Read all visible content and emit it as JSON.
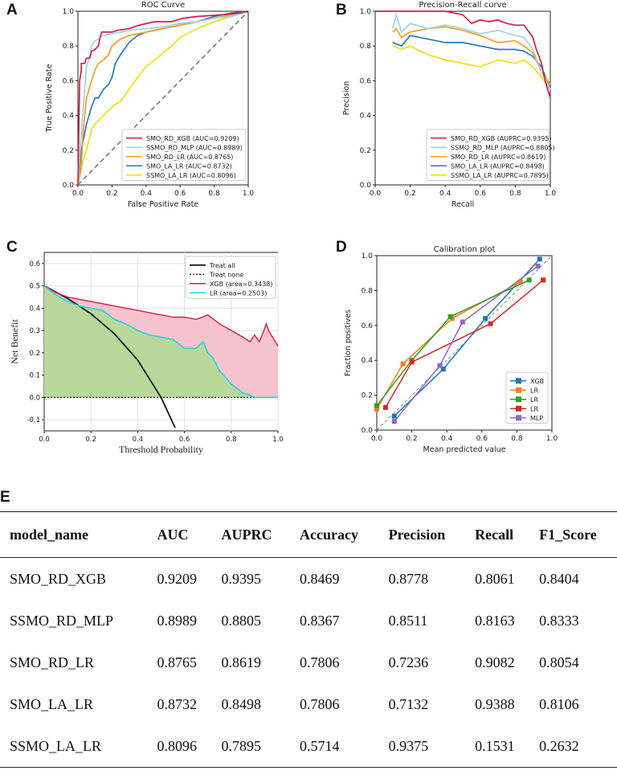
{
  "panels": {
    "a": "A",
    "b": "B",
    "c": "C",
    "d": "D",
    "e": "E"
  },
  "colors": {
    "xgb": "#d41f47",
    "mlp": "#9ed3e1",
    "rd_lr": "#f2a21a",
    "la_lr": "#2b77b3",
    "ssmo_la_lr": "#f1dd1a",
    "xgb_cal": "#1f77b4",
    "lr1_cal": "#ff7f0e",
    "lr2_cal": "#2ca02c",
    "lr3_cal": "#d62728",
    "mlp_cal": "#9467bd",
    "dca_xgb": "#d41f47",
    "dca_lr": "#1ad7e8",
    "dca_xgb_fill": "#f7c3cd",
    "dca_lr_fill": "#b9d99a"
  },
  "chart_data": [
    {
      "id": "roc",
      "type": "line",
      "title": "ROC Curve",
      "xlabel": "False Positive Rate",
      "ylabel": "True Positive Rate",
      "xlim": [
        0,
        1
      ],
      "ylim": [
        0,
        1
      ],
      "ticks": [
        "0.0",
        "0.2",
        "0.4",
        "0.6",
        "0.8",
        "1.0"
      ],
      "legend_position": "bottom-right",
      "series": [
        {
          "name": "SMO_RD_XGB (AUC=0.9209)",
          "color_key": "xgb",
          "x": [
            0,
            0.01,
            0.02,
            0.02,
            0.04,
            0.05,
            0.07,
            0.08,
            0.1,
            0.12,
            0.13,
            0.14,
            0.2,
            0.23,
            0.3,
            0.36,
            0.45,
            0.55,
            0.62,
            0.7,
            0.85,
            0.95,
            1
          ],
          "y": [
            0,
            0.6,
            0.66,
            0.7,
            0.7,
            0.73,
            0.73,
            0.77,
            0.78,
            0.8,
            0.85,
            0.88,
            0.88,
            0.89,
            0.9,
            0.92,
            0.94,
            0.94,
            0.96,
            0.97,
            0.98,
            0.99,
            1
          ]
        },
        {
          "name": "SSMO_RD_MLP (AUC=0.8989)",
          "color_key": "mlp",
          "x": [
            0,
            0.02,
            0.04,
            0.05,
            0.07,
            0.08,
            0.1,
            0.12,
            0.15,
            0.2,
            0.3,
            0.4,
            0.5,
            0.6,
            0.7,
            0.8,
            0.9,
            1
          ],
          "y": [
            0,
            0.3,
            0.55,
            0.68,
            0.74,
            0.8,
            0.83,
            0.84,
            0.86,
            0.87,
            0.89,
            0.9,
            0.91,
            0.93,
            0.94,
            0.96,
            0.97,
            1
          ]
        },
        {
          "name": "SMO_RD_LR (AUC=0.8765)",
          "color_key": "rd_lr",
          "x": [
            0,
            0.02,
            0.03,
            0.05,
            0.08,
            0.1,
            0.12,
            0.15,
            0.18,
            0.2,
            0.25,
            0.3,
            0.4,
            0.5,
            0.6,
            0.7,
            0.8,
            0.9,
            1
          ],
          "y": [
            0,
            0.1,
            0.3,
            0.5,
            0.6,
            0.66,
            0.7,
            0.72,
            0.75,
            0.8,
            0.84,
            0.86,
            0.88,
            0.9,
            0.92,
            0.94,
            0.96,
            0.98,
            1
          ]
        },
        {
          "name": "SMO_LA_LR (AUC=0.8732)",
          "color_key": "la_lr",
          "x": [
            0,
            0.02,
            0.05,
            0.08,
            0.1,
            0.12,
            0.15,
            0.18,
            0.2,
            0.22,
            0.25,
            0.3,
            0.35,
            0.4,
            0.5,
            0.6,
            0.7,
            0.8,
            0.9,
            1
          ],
          "y": [
            0,
            0.2,
            0.35,
            0.45,
            0.5,
            0.5,
            0.55,
            0.58,
            0.62,
            0.7,
            0.75,
            0.82,
            0.86,
            0.88,
            0.9,
            0.92,
            0.94,
            0.97,
            0.99,
            1
          ]
        },
        {
          "name": "SSMO_LA_LR (AUC=0.8096)",
          "color_key": "ssmo_la_lr",
          "x": [
            0,
            0.02,
            0.05,
            0.08,
            0.1,
            0.15,
            0.2,
            0.25,
            0.3,
            0.35,
            0.4,
            0.5,
            0.55,
            0.6,
            0.7,
            0.8,
            0.9,
            1
          ],
          "y": [
            0,
            0.1,
            0.2,
            0.32,
            0.35,
            0.4,
            0.45,
            0.48,
            0.55,
            0.62,
            0.68,
            0.76,
            0.8,
            0.85,
            0.9,
            0.94,
            0.97,
            1
          ]
        }
      ]
    },
    {
      "id": "pr",
      "type": "line",
      "title": "Precision-Recall curve",
      "xlabel": "Recall",
      "ylabel": "Precision",
      "xlim": [
        0,
        1
      ],
      "ylim": [
        0,
        1
      ],
      "ticks": [
        "0.0",
        "0.2",
        "0.4",
        "0.6",
        "0.8",
        "1.0"
      ],
      "legend_position": "bottom-right",
      "series": [
        {
          "name": "SMO_RD_XGB (AUPRC=0.9395)",
          "color_key": "xgb",
          "x": [
            0,
            0.05,
            0.1,
            0.2,
            0.3,
            0.4,
            0.5,
            0.55,
            0.6,
            0.65,
            0.7,
            0.75,
            0.8,
            0.85,
            0.9,
            0.92,
            0.95,
            0.97,
            1
          ],
          "y": [
            1,
            1,
            1,
            1,
            1,
            1,
            0.98,
            0.93,
            0.95,
            0.94,
            0.95,
            0.93,
            0.92,
            0.92,
            0.85,
            0.78,
            0.7,
            0.6,
            0.5
          ]
        },
        {
          "name": "SSMO_RD_MLP (AUPRC=0.8805)",
          "color_key": "mlp",
          "x": [
            0.1,
            0.12,
            0.15,
            0.2,
            0.3,
            0.4,
            0.5,
            0.6,
            0.7,
            0.8,
            0.85,
            0.9,
            0.95,
            1
          ],
          "y": [
            0.9,
            0.98,
            0.88,
            0.93,
            0.9,
            0.92,
            0.9,
            0.87,
            0.89,
            0.86,
            0.85,
            0.78,
            0.65,
            0.55
          ]
        },
        {
          "name": "SMO_RD_LR (AUPRC=0.8619)",
          "color_key": "rd_lr",
          "x": [
            0.1,
            0.12,
            0.15,
            0.2,
            0.3,
            0.4,
            0.5,
            0.6,
            0.7,
            0.8,
            0.85,
            0.9,
            0.95,
            1
          ],
          "y": [
            0.88,
            0.9,
            0.85,
            0.88,
            0.9,
            0.91,
            0.89,
            0.86,
            0.82,
            0.83,
            0.8,
            0.76,
            0.65,
            0.58
          ]
        },
        {
          "name": "SMO_LA_LR (AUPRC=0.8498)",
          "color_key": "la_lr",
          "x": [
            0.1,
            0.15,
            0.2,
            0.3,
            0.4,
            0.5,
            0.6,
            0.7,
            0.8,
            0.85,
            0.9,
            0.95,
            1
          ],
          "y": [
            0.82,
            0.8,
            0.86,
            0.84,
            0.82,
            0.82,
            0.8,
            0.78,
            0.78,
            0.77,
            0.74,
            0.68,
            0.55
          ]
        },
        {
          "name": "SSMO_LA_LR (AUPRC=0.7895)",
          "color_key": "ssmo_la_lr",
          "x": [
            0.1,
            0.15,
            0.2,
            0.3,
            0.4,
            0.5,
            0.6,
            0.7,
            0.8,
            0.85,
            0.9,
            0.95,
            1
          ],
          "y": [
            0.8,
            0.78,
            0.8,
            0.75,
            0.72,
            0.7,
            0.68,
            0.72,
            0.7,
            0.72,
            0.68,
            0.62,
            0.55
          ]
        }
      ]
    },
    {
      "id": "dca",
      "type": "area",
      "xlabel": "Threshold Probability",
      "ylabel": "Net Benefit",
      "xlim": [
        0,
        1
      ],
      "ylim": [
        -0.15,
        0.65
      ],
      "xticks": [
        "0.0",
        "0.2",
        "0.4",
        "0.6",
        "0.8",
        "1.0"
      ],
      "yticks": [
        "-0.1",
        "0.0",
        "0.1",
        "0.2",
        "0.3",
        "0.4",
        "0.5",
        "0.6"
      ],
      "legend_position": "top-right",
      "legend": [
        "Treat all",
        "Treat none",
        "XGB (area=0.3438)",
        "LR (area=0.2503)"
      ],
      "treat_all": {
        "x": [
          0,
          0.1,
          0.2,
          0.3,
          0.4,
          0.5,
          0.56
        ],
        "y": [
          0.5,
          0.444,
          0.375,
          0.286,
          0.167,
          0,
          -0.136
        ]
      },
      "treat_none": {
        "x": [
          0,
          1
        ],
        "y": [
          0,
          0
        ]
      },
      "series": [
        {
          "name": "XGB",
          "color_key": "dca_xgb",
          "fill_key": "dca_xgb_fill",
          "x": [
            0,
            0.05,
            0.1,
            0.15,
            0.2,
            0.25,
            0.3,
            0.35,
            0.4,
            0.45,
            0.5,
            0.55,
            0.6,
            0.65,
            0.7,
            0.75,
            0.8,
            0.85,
            0.88,
            0.9,
            0.92,
            0.94,
            0.95,
            0.96,
            1
          ],
          "y": [
            0.5,
            0.47,
            0.45,
            0.44,
            0.43,
            0.42,
            0.41,
            0.4,
            0.39,
            0.38,
            0.37,
            0.36,
            0.36,
            0.35,
            0.37,
            0.33,
            0.3,
            0.27,
            0.25,
            0.28,
            0.25,
            0.3,
            0.33,
            0.3,
            0.23
          ]
        },
        {
          "name": "LR",
          "color_key": "dca_lr",
          "fill_key": "dca_lr_fill",
          "x": [
            0,
            0.05,
            0.1,
            0.15,
            0.2,
            0.25,
            0.3,
            0.35,
            0.4,
            0.45,
            0.5,
            0.55,
            0.6,
            0.65,
            0.68,
            0.7,
            0.72,
            0.75,
            0.8,
            0.85,
            0.88,
            0.9,
            1
          ],
          "y": [
            0.5,
            0.46,
            0.43,
            0.41,
            0.4,
            0.39,
            0.35,
            0.33,
            0.3,
            0.28,
            0.27,
            0.26,
            0.22,
            0.22,
            0.25,
            0.2,
            0.18,
            0.12,
            0.06,
            0.02,
            0.01,
            0,
            0
          ]
        }
      ]
    },
    {
      "id": "calibration",
      "type": "line",
      "title": "Calibration plot",
      "xlabel": "Mean predicted value",
      "ylabel": "Fraction positives",
      "xlim": [
        0,
        1
      ],
      "ylim": [
        0,
        1
      ],
      "ticks": [
        "0.0",
        "0.2",
        "0.4",
        "0.6",
        "0.8",
        "1.0"
      ],
      "legend_position": "bottom-right",
      "series": [
        {
          "name": "XGB",
          "color_key": "xgb_cal",
          "x": [
            0.1,
            0.38,
            0.62,
            0.93
          ],
          "y": [
            0.08,
            0.35,
            0.64,
            0.98
          ]
        },
        {
          "name": "LR",
          "color_key": "lr1_cal",
          "x": [
            0,
            0.15,
            0.43,
            0.82
          ],
          "y": [
            0.12,
            0.38,
            0.64,
            0.85
          ]
        },
        {
          "name": "LR",
          "color_key": "lr2_cal",
          "x": [
            0,
            0.2,
            0.42,
            0.87
          ],
          "y": [
            0.14,
            0.4,
            0.65,
            0.86
          ]
        },
        {
          "name": "LR",
          "color_key": "lr3_cal",
          "x": [
            0.05,
            0.2,
            0.65,
            0.95
          ],
          "y": [
            0.13,
            0.39,
            0.61,
            0.86
          ]
        },
        {
          "name": "MLP",
          "color_key": "mlp_cal",
          "x": [
            0.1,
            0.36,
            0.49,
            0.92
          ],
          "y": [
            0.05,
            0.37,
            0.62,
            0.94
          ]
        }
      ]
    },
    {
      "id": "metrics",
      "type": "table",
      "columns": [
        "model_name",
        "AUC",
        "AUPRC",
        "Accuracy",
        "Precision",
        "Recall",
        "F1_Score"
      ],
      "rows": [
        [
          "SMO_RD_XGB",
          "0.9209",
          "0.9395",
          "0.8469",
          "0.8778",
          "0.8061",
          "0.8404"
        ],
        [
          "SSMO_RD_MLP",
          "0.8989",
          "0.8805",
          "0.8367",
          "0.8511",
          "0.8163",
          "0.8333"
        ],
        [
          "SMO_RD_LR",
          "0.8765",
          "0.8619",
          "0.7806",
          "0.7236",
          "0.9082",
          "0.8054"
        ],
        [
          "SMO_LA_LR",
          "0.8732",
          "0.8498",
          "0.7806",
          "0.7132",
          "0.9388",
          "0.8106"
        ],
        [
          "SSMO_LA_LR",
          "0.8096",
          "0.7895",
          "0.5714",
          "0.9375",
          "0.1531",
          "0.2632"
        ]
      ]
    }
  ]
}
